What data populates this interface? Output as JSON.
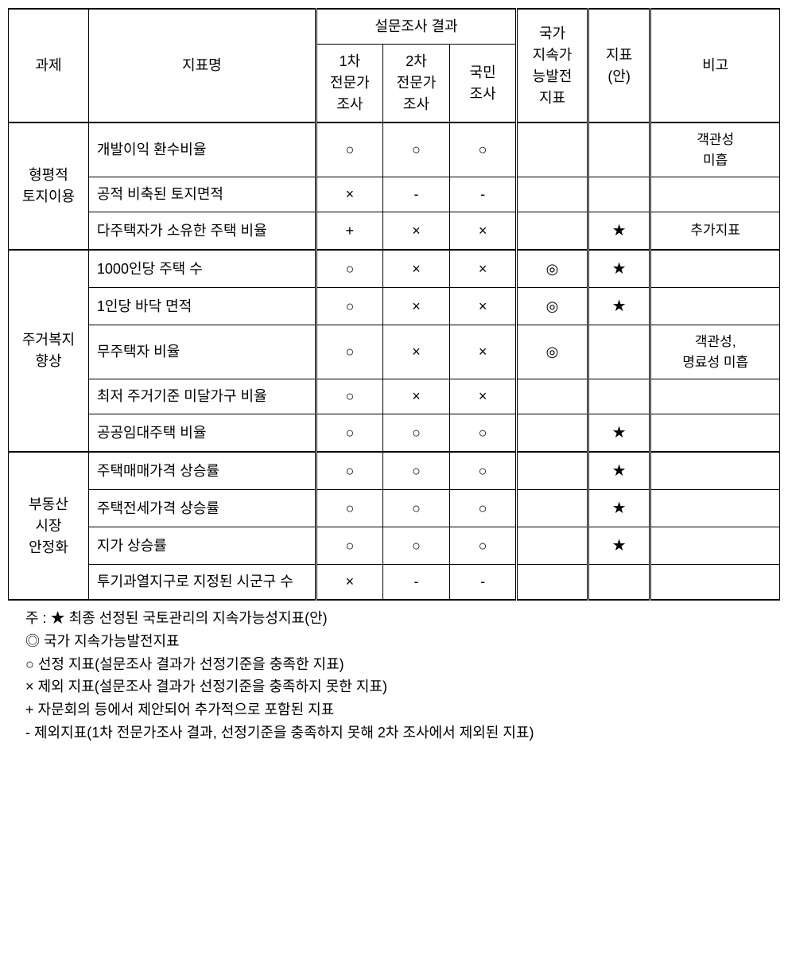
{
  "symbols": {
    "circle": "○",
    "cross": "×",
    "dash": "-",
    "plus": "+",
    "dcircle": "◎",
    "star": "★"
  },
  "headers": {
    "task": "과제",
    "indicator": "지표명",
    "survey_group": "설문조사 결과",
    "survey1": "1차\n전문가\n조사",
    "survey2": "2차\n전문가\n조사",
    "survey3": "국민\n조사",
    "national": "국가\n지속가\n능발전\n지표",
    "plan": "지표\n(안)",
    "remark": "비고"
  },
  "tasks": [
    {
      "name": "형평적\n토지이용",
      "rows": [
        {
          "ind": "개발이익 환수비율",
          "s1": "circle",
          "s2": "circle",
          "s3": "circle",
          "nat": "",
          "plan": "",
          "rem": "객관성\n미흡"
        },
        {
          "ind": "공적 비축된 토지면적",
          "s1": "cross",
          "s2": "dash",
          "s3": "dash",
          "nat": "",
          "plan": "",
          "rem": ""
        },
        {
          "ind": "다주택자가 소유한 주택 비율",
          "s1": "plus",
          "s2": "cross",
          "s3": "cross",
          "nat": "",
          "plan": "star",
          "rem": "추가지표"
        }
      ]
    },
    {
      "name": "주거복지\n향상",
      "rows": [
        {
          "ind": "1000인당 주택 수",
          "s1": "circle",
          "s2": "cross",
          "s3": "cross",
          "nat": "dcircle",
          "plan": "star",
          "rem": ""
        },
        {
          "ind": "1인당 바닥 면적",
          "s1": "circle",
          "s2": "cross",
          "s3": "cross",
          "nat": "dcircle",
          "plan": "star",
          "rem": ""
        },
        {
          "ind": "무주택자 비율",
          "s1": "circle",
          "s2": "cross",
          "s3": "cross",
          "nat": "dcircle",
          "plan": "",
          "rem": "객관성,\n명료성 미흡"
        },
        {
          "ind": "최저 주거기준 미달가구 비율",
          "s1": "circle",
          "s2": "cross",
          "s3": "cross",
          "nat": "",
          "plan": "",
          "rem": ""
        },
        {
          "ind": "공공임대주택 비율",
          "s1": "circle",
          "s2": "circle",
          "s3": "circle",
          "nat": "",
          "plan": "star",
          "rem": ""
        }
      ]
    },
    {
      "name": "부동산\n시장\n안정화",
      "rows": [
        {
          "ind": "주택매매가격 상승률",
          "s1": "circle",
          "s2": "circle",
          "s3": "circle",
          "nat": "",
          "plan": "star",
          "rem": ""
        },
        {
          "ind": "주택전세가격 상승률",
          "s1": "circle",
          "s2": "circle",
          "s3": "circle",
          "nat": "",
          "plan": "star",
          "rem": ""
        },
        {
          "ind": "지가 상승률",
          "s1": "circle",
          "s2": "circle",
          "s3": "circle",
          "nat": "",
          "plan": "star",
          "rem": ""
        },
        {
          "ind": "투기과열지구로 지정된 시군구 수",
          "s1": "cross",
          "s2": "dash",
          "s3": "dash",
          "nat": "",
          "plan": "",
          "rem": ""
        }
      ]
    }
  ],
  "notes": {
    "prefix": "주 : ",
    "items": [
      "★ 최종 선정된 국토관리의 지속가능성지표(안)",
      "◎ 국가 지속가능발전지표",
      "○ 선정 지표(설문조사 결과가 선정기준을 충족한 지표)",
      "× 제외 지표(설문조사 결과가 선정기준을 충족하지 못한 지표)",
      "+ 자문회의 등에서 제안되어 추가적으로 포함된 지표",
      "- 제외지표(1차 전문가조사 결과, 선정기준을 충족하지 못해 2차 조사에서 제외된 지표)"
    ]
  }
}
